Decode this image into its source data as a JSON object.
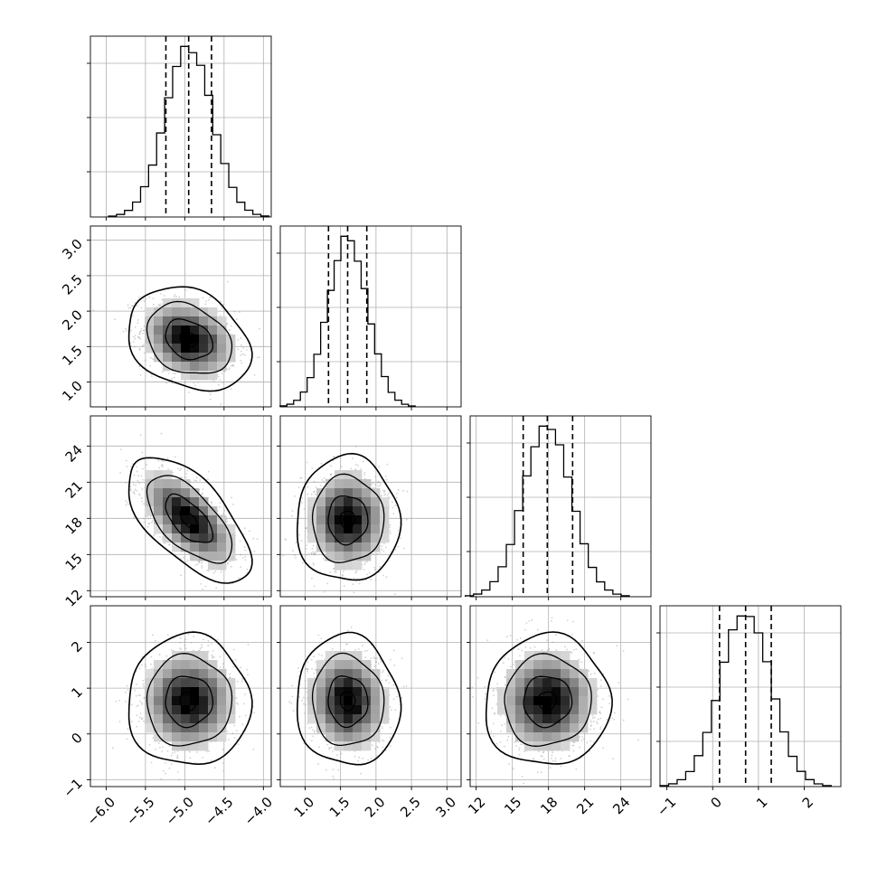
{
  "chart_data": {
    "type": "corner",
    "parameters": 4,
    "style": {
      "grid": true,
      "hist_color": "#000000",
      "quantile_line_style": "dashed",
      "scatter_color": "#7f7f7f",
      "density_fill": "grayscale",
      "contours": "black"
    },
    "axes": [
      {
        "index": 0,
        "range": [
          -6.2,
          -3.9
        ],
        "ticks": [
          -6.0,
          -5.5,
          -5.0,
          -4.5,
          -4.0
        ],
        "tick_labels": [
          "−6.0",
          "−5.5",
          "−5.0",
          "−4.5",
          "−4.0"
        ],
        "mean": -4.95,
        "sd": 0.3,
        "quantiles": [
          -5.24,
          -4.95,
          -4.66
        ]
      },
      {
        "index": 1,
        "range": [
          0.65,
          3.2
        ],
        "ticks": [
          1.0,
          1.5,
          2.0,
          2.5,
          3.0
        ],
        "tick_labels": [
          "1.0",
          "1.5",
          "2.0",
          "2.5",
          "3.0"
        ],
        "mean": 1.6,
        "sd": 0.28,
        "quantiles": [
          1.33,
          1.6,
          1.87
        ]
      },
      {
        "index": 2,
        "range": [
          11.5,
          26.5
        ],
        "ticks": [
          12,
          15,
          18,
          21,
          24
        ],
        "tick_labels": [
          "12",
          "15",
          "18",
          "21",
          "24"
        ],
        "mean": 17.9,
        "sd": 2.0,
        "quantiles": [
          15.9,
          17.9,
          20.0
        ]
      },
      {
        "index": 3,
        "range": [
          -1.15,
          2.8
        ],
        "ticks": [
          -1,
          0,
          1,
          2
        ],
        "tick_labels": [
          "−1",
          "0",
          "1",
          "2"
        ],
        "mean": 0.72,
        "sd": 0.55,
        "quantiles": [
          0.15,
          0.72,
          1.28
        ]
      }
    ],
    "correlations": [
      {
        "pair": [
          0,
          1
        ],
        "rho": -0.25
      },
      {
        "pair": [
          0,
          2
        ],
        "rho": -0.62
      },
      {
        "pair": [
          0,
          3
        ],
        "rho": 0.0
      },
      {
        "pair": [
          1,
          2
        ],
        "rho": 0.0
      },
      {
        "pair": [
          1,
          3
        ],
        "rho": -0.05
      },
      {
        "pair": [
          2,
          3
        ],
        "rho": 0.02
      }
    ]
  }
}
